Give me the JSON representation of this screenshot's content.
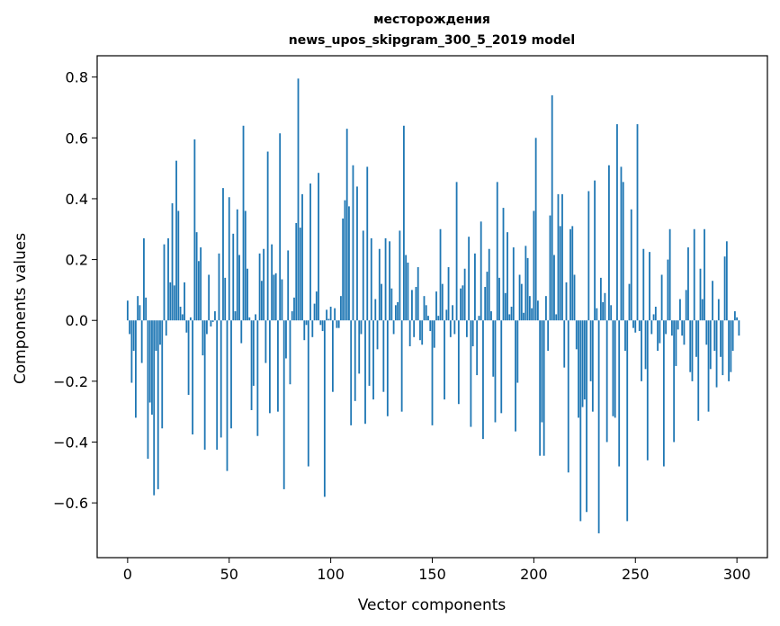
{
  "chart_data": {
    "type": "bar",
    "title_line1": "месторождения",
    "title_line2": "news_upos_skipgram_300_5_2019 model",
    "xlabel": "Vector components",
    "ylabel": "Components values",
    "xlim": [
      -15,
      315
    ],
    "ylim": [
      -0.78,
      0.87
    ],
    "xticks": [
      0,
      50,
      100,
      150,
      200,
      250,
      300
    ],
    "yticks": [
      -0.6,
      -0.4,
      -0.2,
      0.0,
      0.2,
      0.4,
      0.6,
      0.8
    ],
    "ytick_labels": [
      "−0.6",
      "−0.4",
      "−0.2",
      "0.0",
      "0.2",
      "0.4",
      "0.6",
      "0.8"
    ],
    "bar_color": "#1f77b4",
    "grid": false,
    "values": [
      0.065,
      -0.045,
      -0.205,
      -0.1,
      -0.32,
      0.08,
      0.05,
      -0.14,
      0.27,
      0.075,
      -0.455,
      -0.27,
      -0.31,
      -0.575,
      -0.1,
      -0.555,
      -0.08,
      -0.355,
      0.25,
      -0.05,
      0.27,
      0.125,
      0.385,
      0.115,
      0.525,
      0.36,
      0.045,
      0.02,
      0.125,
      -0.04,
      -0.245,
      0.01,
      -0.375,
      0.595,
      0.29,
      0.195,
      0.24,
      -0.115,
      -0.425,
      -0.045,
      0.15,
      -0.02,
      -0.005,
      0.03,
      -0.425,
      0.22,
      -0.385,
      0.435,
      0.14,
      -0.495,
      0.405,
      -0.355,
      0.285,
      0.03,
      0.365,
      0.215,
      -0.075,
      0.64,
      0.36,
      0.17,
      0.01,
      -0.295,
      -0.215,
      0.02,
      -0.38,
      0.22,
      0.13,
      0.235,
      -0.14,
      0.555,
      -0.305,
      0.25,
      0.15,
      0.155,
      -0.3,
      0.615,
      0.135,
      -0.555,
      -0.125,
      0.23,
      -0.21,
      0.03,
      0.075,
      0.32,
      0.795,
      0.305,
      0.415,
      -0.065,
      -0.015,
      -0.48,
      0.45,
      -0.055,
      0.055,
      0.095,
      0.485,
      -0.015,
      -0.035,
      -0.58,
      0.035,
      0.005,
      0.045,
      -0.235,
      0.04,
      -0.025,
      -0.025,
      0.08,
      0.335,
      0.395,
      0.63,
      0.375,
      -0.345,
      0.51,
      -0.265,
      0.44,
      -0.175,
      -0.045,
      0.295,
      -0.34,
      0.505,
      -0.215,
      0.27,
      -0.26,
      0.07,
      -0.095,
      0.235,
      0.12,
      -0.235,
      0.27,
      -0.315,
      0.26,
      0.105,
      -0.045,
      0.05,
      0.06,
      0.295,
      -0.3,
      0.64,
      0.215,
      0.19,
      -0.085,
      0.1,
      -0.055,
      0.11,
      0.175,
      -0.065,
      -0.08,
      0.08,
      0.05,
      0.015,
      -0.035,
      -0.345,
      -0.09,
      0.095,
      0.015,
      0.3,
      0.12,
      -0.26,
      0.035,
      0.175,
      -0.055,
      0.05,
      -0.045,
      0.455,
      -0.275,
      0.105,
      0.115,
      0.17,
      -0.055,
      0.275,
      -0.35,
      -0.085,
      0.22,
      -0.18,
      0.015,
      0.325,
      -0.39,
      0.11,
      0.16,
      0.235,
      0.03,
      -0.185,
      -0.335,
      0.455,
      0.14,
      -0.305,
      0.37,
      0.09,
      0.29,
      0.02,
      0.045,
      0.24,
      -0.365,
      -0.205,
      0.15,
      0.12,
      0.025,
      0.245,
      0.205,
      0.08,
      0.04,
      0.36,
      0.6,
      0.065,
      -0.445,
      -0.335,
      -0.445,
      0.08,
      -0.1,
      0.345,
      0.74,
      0.215,
      0.02,
      0.415,
      0.31,
      0.415,
      -0.155,
      0.125,
      -0.5,
      0.3,
      0.31,
      0.15,
      -0.095,
      -0.32,
      -0.66,
      -0.285,
      -0.26,
      -0.63,
      0.425,
      -0.2,
      -0.3,
      0.46,
      0.04,
      -0.7,
      0.14,
      0.06,
      0.09,
      -0.4,
      0.51,
      0.05,
      -0.315,
      -0.32,
      0.645,
      -0.48,
      0.505,
      0.455,
      -0.1,
      -0.66,
      0.12,
      0.365,
      -0.025,
      -0.04,
      0.645,
      -0.035,
      -0.2,
      0.235,
      -0.16,
      -0.46,
      0.225,
      -0.045,
      0.02,
      0.045,
      -0.1,
      -0.075,
      0.15,
      -0.48,
      -0.045,
      0.2,
      0.3,
      -0.05,
      -0.4,
      -0.15,
      -0.03,
      0.07,
      -0.05,
      -0.08,
      0.1,
      0.24,
      -0.17,
      -0.2,
      0.3,
      -0.12,
      -0.33,
      0.17,
      0.07,
      0.3,
      -0.08,
      -0.3,
      -0.16,
      0.13,
      -0.1,
      -0.22,
      0.07,
      -0.12,
      -0.18,
      0.21,
      0.26,
      -0.2,
      -0.17,
      -0.1,
      0.03,
      0.01,
      -0.05
    ]
  }
}
